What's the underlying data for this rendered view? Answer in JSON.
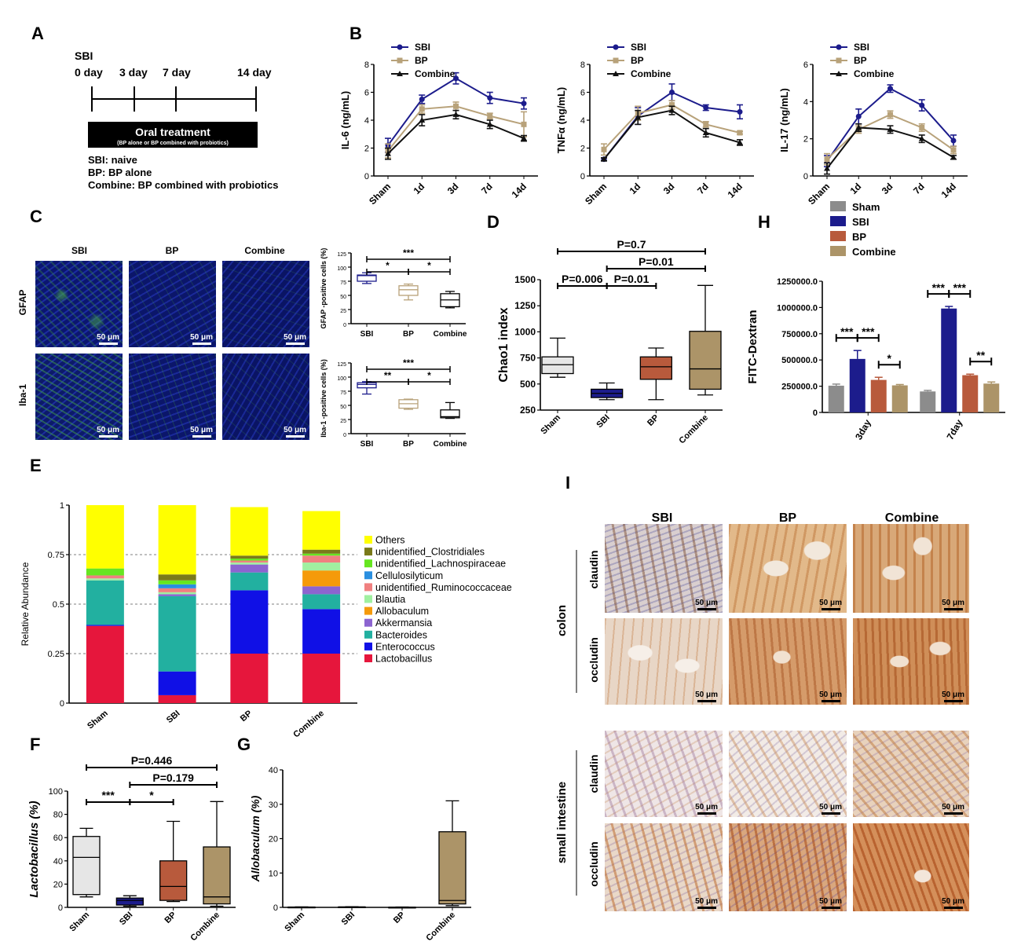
{
  "panels": {
    "A": "A",
    "B": "B",
    "C": "C",
    "D": "D",
    "E": "E",
    "F": "F",
    "G": "G",
    "H": "H",
    "I": "I"
  },
  "panel_a": {
    "injury_label": "SBI",
    "timepoints": [
      "0 day",
      "3 day",
      "7 day",
      "14 day"
    ],
    "treatment_title": "Oral treatment",
    "treatment_subtitle": "(BP alone or  BP combined with probiotics)",
    "legend_lines": [
      "SBI: naive",
      "BP: BP alone",
      "Combine: BP combined with probiotics"
    ]
  },
  "colors": {
    "SBI": "#1c1c8c",
    "BP": "#b8a27a",
    "Combine": "#111111",
    "Sham": "#8c8c8c",
    "BP_box": "#b85a3c",
    "Combine_box": "#ac9468",
    "Sham_box": "#e6e6e6",
    "stain_green": "#3fa03f",
    "stain_blue": "#1a1f9c"
  },
  "panel_c": {
    "columns": [
      "SBI",
      "BP",
      "Combine"
    ],
    "rows": [
      "GFAP",
      "Iba-1"
    ],
    "scale": "50 μm"
  },
  "panel_i": {
    "columns": [
      "SBI",
      "BP",
      "Combine"
    ],
    "tissues": [
      "colon",
      "small intestine"
    ],
    "stains": [
      "claudin",
      "occludin"
    ],
    "scale": "50 μm"
  },
  "chart_data": [
    {
      "id": "B1",
      "type": "line",
      "ylabel": "IL-6 (ng/mL)",
      "ylim": [
        0,
        8
      ],
      "yticks": [
        0,
        2,
        4,
        6,
        8
      ],
      "categories": [
        "Sham",
        "1d",
        "3d",
        "7d",
        "14d"
      ],
      "series": [
        {
          "name": "SBI",
          "values": [
            2.2,
            5.5,
            7.0,
            5.6,
            5.2
          ],
          "err": [
            0.5,
            0.3,
            0.4,
            0.4,
            0.4
          ]
        },
        {
          "name": "BP",
          "values": [
            1.8,
            4.8,
            5.0,
            4.3,
            3.7
          ],
          "err": [
            0.5,
            0.3,
            0.3,
            0.2,
            0.9
          ]
        },
        {
          "name": "Combine",
          "values": [
            1.6,
            4.0,
            4.4,
            3.7,
            2.7
          ],
          "err": [
            0.4,
            0.4,
            0.3,
            0.3,
            0.2
          ]
        }
      ]
    },
    {
      "id": "B2",
      "type": "line",
      "ylabel": "TNFα (ng/mL)",
      "ylim": [
        0,
        8
      ],
      "yticks": [
        0,
        2,
        4,
        6,
        8
      ],
      "categories": [
        "Sham",
        "1d",
        "3d",
        "7d",
        "14d"
      ],
      "series": [
        {
          "name": "SBI",
          "values": [
            1.2,
            4.3,
            6.0,
            4.9,
            4.6
          ],
          "err": [
            0.1,
            0.6,
            0.6,
            0.2,
            0.5
          ]
        },
        {
          "name": "BP",
          "values": [
            1.9,
            4.5,
            5.1,
            3.7,
            3.1
          ],
          "err": [
            0.4,
            0.5,
            0.3,
            0.2,
            0.1
          ]
        },
        {
          "name": "Combine",
          "values": [
            1.2,
            4.2,
            4.7,
            3.1,
            2.4
          ],
          "err": [
            0.1,
            0.5,
            0.3,
            0.3,
            0.2
          ]
        }
      ]
    },
    {
      "id": "B3",
      "type": "line",
      "ylabel": "IL-17 (ng/mL)",
      "ylim": [
        0,
        6
      ],
      "yticks": [
        0,
        2,
        4,
        6
      ],
      "categories": [
        "Sham",
        "1d",
        "3d",
        "7d",
        "14d"
      ],
      "series": [
        {
          "name": "SBI",
          "values": [
            0.8,
            3.2,
            4.7,
            3.8,
            1.9
          ],
          "err": [
            0.3,
            0.4,
            0.2,
            0.3,
            0.3
          ]
        },
        {
          "name": "BP",
          "values": [
            0.9,
            2.5,
            3.3,
            2.6,
            1.4
          ],
          "err": [
            0.3,
            0.2,
            0.2,
            0.2,
            0.2
          ]
        },
        {
          "name": "Combine",
          "values": [
            0.4,
            2.6,
            2.5,
            2.0,
            1.0
          ],
          "err": [
            0.3,
            0.2,
            0.2,
            0.2,
            0.1
          ]
        }
      ]
    },
    {
      "id": "C1",
      "type": "box",
      "ylabel": "GFAP -positive cells (%)",
      "ylim": [
        0,
        125
      ],
      "yticks": [
        0,
        25,
        50,
        75,
        100,
        125
      ],
      "categories": [
        "SBI",
        "BP",
        "Combine"
      ],
      "boxes": [
        [
          71,
          75,
          85,
          86,
          90
        ],
        [
          42,
          50,
          60,
          67,
          70
        ],
        [
          28,
          30,
          42,
          53,
          57
        ]
      ],
      "sig": [
        {
          "a": 0,
          "b": 2,
          "label": "***",
          "level": 0
        },
        {
          "a": 0,
          "b": 1,
          "label": "*",
          "level": 1
        },
        {
          "a": 1,
          "b": 2,
          "label": "*",
          "level": 1
        }
      ]
    },
    {
      "id": "C2",
      "type": "box",
      "ylabel": "Iba-1 -positive cells (%)",
      "ylim": [
        0,
        125
      ],
      "yticks": [
        0,
        25,
        50,
        75,
        100,
        125
      ],
      "categories": [
        "SBI",
        "BP",
        "Combine"
      ],
      "boxes": [
        [
          70,
          81,
          87,
          90,
          92
        ],
        [
          43,
          45,
          53,
          60,
          61
        ],
        [
          27,
          28,
          30,
          42,
          55
        ]
      ],
      "sig": [
        {
          "a": 0,
          "b": 2,
          "label": "***",
          "level": 0
        },
        {
          "a": 0,
          "b": 1,
          "label": "**",
          "level": 1
        },
        {
          "a": 1,
          "b": 2,
          "label": "*",
          "level": 1
        }
      ]
    },
    {
      "id": "D",
      "type": "box",
      "ylabel": "Chao1 index",
      "ylim": [
        250,
        1500
      ],
      "yticks": [
        250,
        500,
        750,
        1000,
        1250,
        1500
      ],
      "categories": [
        "Sham",
        "SBI",
        "BP",
        "Combine"
      ],
      "boxes": [
        [
          565,
          600,
          685,
          760,
          940
        ],
        [
          350,
          370,
          410,
          450,
          510
        ],
        [
          350,
          545,
          665,
          760,
          845
        ],
        [
          395,
          450,
          645,
          1005,
          1445
        ]
      ],
      "sig": [
        {
          "a": 0,
          "b": 3,
          "label": "P=0.7",
          "level": 0
        },
        {
          "a": 1,
          "b": 3,
          "label": "P=0.01",
          "level": 1
        },
        {
          "a": 0,
          "b": 1,
          "label": "P=0.006",
          "level": 2
        },
        {
          "a": 1,
          "b": 2,
          "label": "P=0.01",
          "level": 2
        }
      ]
    },
    {
      "id": "H",
      "type": "bar",
      "ylabel": "FITC-Dextran",
      "ylim": [
        0,
        1250000
      ],
      "yticks": [
        0,
        250000,
        500000,
        750000,
        1000000,
        1250000
      ],
      "tick_labels": [
        "0",
        "250000.0",
        "500000.0",
        "750000.0",
        "1000000.0",
        "1250000.0"
      ],
      "categories": [
        "3day",
        "7day"
      ],
      "series": [
        {
          "name": "Sham",
          "values": [
            255000,
            200000
          ],
          "err": [
            15000,
            10000
          ]
        },
        {
          "name": "SBI",
          "values": [
            510000,
            990000
          ],
          "err": [
            80000,
            20000
          ]
        },
        {
          "name": "BP",
          "values": [
            310000,
            355000
          ],
          "err": [
            25000,
            10000
          ]
        },
        {
          "name": "Combine",
          "values": [
            258000,
            275000
          ],
          "err": [
            8000,
            15000
          ]
        }
      ],
      "sig": [
        {
          "label": "***",
          "group": 0,
          "a": 0,
          "b": 1
        },
        {
          "label": "***",
          "group": 0,
          "a": 1,
          "b": 2
        },
        {
          "label": "*",
          "group": 0,
          "a": 2,
          "b": 3
        },
        {
          "label": "***",
          "group": 1,
          "a": 0,
          "b": 1
        },
        {
          "label": "***",
          "group": 1,
          "a": 1,
          "b": 2
        },
        {
          "label": "**",
          "group": 1,
          "a": 2,
          "b": 3
        }
      ]
    },
    {
      "id": "E",
      "type": "bar",
      "stacked": true,
      "ylabel": "Relative Abundance",
      "ylim": [
        0,
        1
      ],
      "yticks": [
        0,
        0.25,
        0.5,
        0.75,
        1
      ],
      "tick_labels": [
        "0",
        "0.25",
        "0.5",
        "0.75",
        "1"
      ],
      "categories": [
        "Sham",
        "SBI",
        "BP",
        "Combine"
      ],
      "series": [
        {
          "name": "Lactobacillus",
          "color": "#e6163c",
          "values": [
            0.39,
            0.04,
            0.25,
            0.25
          ]
        },
        {
          "name": "Enterococcus",
          "color": "#1010e6",
          "values": [
            0.005,
            0.12,
            0.32,
            0.225
          ]
        },
        {
          "name": "Bacteroides",
          "color": "#22b0a0",
          "values": [
            0.225,
            0.38,
            0.09,
            0.075
          ]
        },
        {
          "name": "Akkermansia",
          "color": "#8c64d0",
          "values": [
            0,
            0.01,
            0.04,
            0.04
          ]
        },
        {
          "name": "Allobaculum",
          "color": "#f59a0a",
          "values": [
            0,
            0,
            0,
            0.08
          ]
        },
        {
          "name": "Blautia",
          "color": "#a0f0a0",
          "values": [
            0.01,
            0.01,
            0.01,
            0.04
          ]
        },
        {
          "name": "unidentified_Ruminococcaceae",
          "color": "#f08080",
          "values": [
            0.015,
            0.02,
            0.01,
            0.035
          ]
        },
        {
          "name": "Cellulosilyticum",
          "color": "#2a8fe0",
          "values": [
            0,
            0.02,
            0,
            0
          ]
        },
        {
          "name": "unidentified_Lachnospiraceae",
          "color": "#66e620",
          "values": [
            0.035,
            0.02,
            0.01,
            0.01
          ]
        },
        {
          "name": "unidentified_Clostridiales",
          "color": "#7a7a1a",
          "values": [
            0,
            0.03,
            0.015,
            0.02
          ]
        },
        {
          "name": "Others",
          "color": "#ffff00",
          "values": [
            0.32,
            0.35,
            0.245,
            0.195
          ]
        }
      ]
    },
    {
      "id": "F",
      "type": "box",
      "ylabel": "Lactobacillus (%)",
      "ylim": [
        0,
        100
      ],
      "yticks": [
        0,
        20,
        40,
        60,
        80,
        100
      ],
      "categories": [
        "Sham",
        "SBI",
        "BP",
        "Combine"
      ],
      "boxes": [
        [
          9,
          11,
          43,
          61,
          68
        ],
        [
          1,
          2,
          6,
          8,
          10
        ],
        [
          5,
          6,
          18,
          40,
          74
        ],
        [
          1,
          3,
          9,
          52,
          91
        ]
      ],
      "sig": [
        {
          "a": 0,
          "b": 3,
          "label": "P=0.446",
          "level": 0
        },
        {
          "a": 1,
          "b": 3,
          "label": "P=0.179",
          "level": 1
        },
        {
          "a": 0,
          "b": 1,
          "label": "***",
          "level": 2
        },
        {
          "a": 1,
          "b": 2,
          "label": "*",
          "level": 2
        }
      ]
    },
    {
      "id": "G",
      "type": "box",
      "ylabel": "Allobaculum (%)",
      "ylim": [
        0,
        40
      ],
      "yticks": [
        0,
        10,
        20,
        30,
        40
      ],
      "categories": [
        "Sham",
        "SBI",
        "BP",
        "Combine"
      ],
      "boxes": [
        [
          0,
          0,
          0.05,
          0.1,
          0.15
        ],
        [
          0,
          0,
          0.05,
          0.15,
          0.2
        ],
        [
          0,
          0,
          0.03,
          0.05,
          0.1
        ],
        [
          0.5,
          1,
          2,
          22,
          31
        ]
      ],
      "sig": []
    }
  ]
}
